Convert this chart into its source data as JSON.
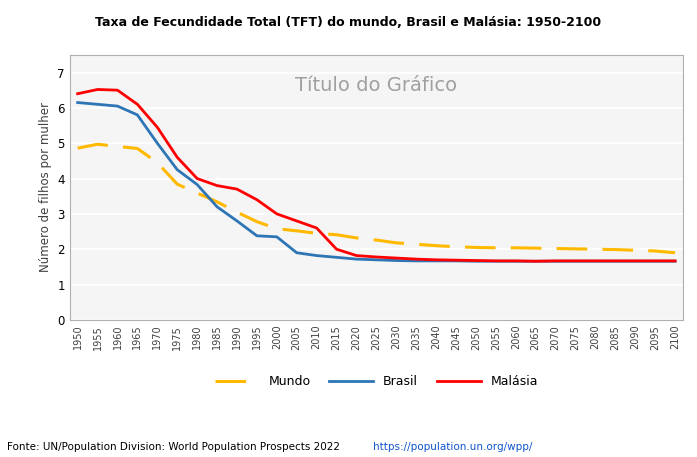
{
  "title_top": "Taxa de Fecundidade Total (TFT) do mundo, Brasil e Malásia: 1950-2100",
  "title_inner": "Título do Gráfico",
  "ylabel": "Número de filhos por mulher",
  "source_text": "Fonte: UN/Population Division: World Population Prospects 2022 ",
  "source_url": "https://population.un.org/wpp/",
  "years": [
    1950,
    1955,
    1960,
    1965,
    1970,
    1975,
    1980,
    1985,
    1990,
    1995,
    2000,
    2005,
    2010,
    2015,
    2020,
    2025,
    2030,
    2035,
    2040,
    2045,
    2050,
    2055,
    2060,
    2065,
    2070,
    2075,
    2080,
    2085,
    2090,
    2095,
    2100
  ],
  "mundo": [
    4.86,
    4.97,
    4.91,
    4.85,
    4.45,
    3.84,
    3.59,
    3.34,
    3.05,
    2.78,
    2.58,
    2.52,
    2.45,
    2.41,
    2.32,
    2.26,
    2.18,
    2.14,
    2.1,
    2.07,
    2.05,
    2.04,
    2.04,
    2.03,
    2.02,
    2.01,
    2.0,
    1.99,
    1.97,
    1.95,
    1.9
  ],
  "brasil": [
    6.15,
    6.1,
    6.05,
    5.8,
    5.0,
    4.25,
    3.83,
    3.2,
    2.8,
    2.38,
    2.35,
    1.9,
    1.82,
    1.77,
    1.72,
    1.7,
    1.68,
    1.67,
    1.67,
    1.67,
    1.66,
    1.66,
    1.66,
    1.66,
    1.66,
    1.66,
    1.66,
    1.66,
    1.66,
    1.66,
    1.66
  ],
  "malasia": [
    6.4,
    6.52,
    6.5,
    6.1,
    5.45,
    4.6,
    4.0,
    3.8,
    3.7,
    3.4,
    3.0,
    2.8,
    2.6,
    2.0,
    1.82,
    1.78,
    1.75,
    1.72,
    1.7,
    1.69,
    1.68,
    1.67,
    1.67,
    1.66,
    1.67,
    1.67,
    1.67,
    1.67,
    1.67,
    1.67,
    1.67
  ],
  "mundo_color": "#FFB900",
  "brasil_color": "#2E75B6",
  "malasia_color": "#FF0000",
  "bg_color": "#FFFFFF",
  "plot_bg_color": "#F5F5F5",
  "ylim": [
    0,
    7.5
  ],
  "yticks": [
    0,
    1,
    2,
    3,
    4,
    5,
    6,
    7
  ],
  "grid_color": "#FFFFFF",
  "title_inner_color": "#A0A0A0",
  "border_color": "#B0B0B0"
}
